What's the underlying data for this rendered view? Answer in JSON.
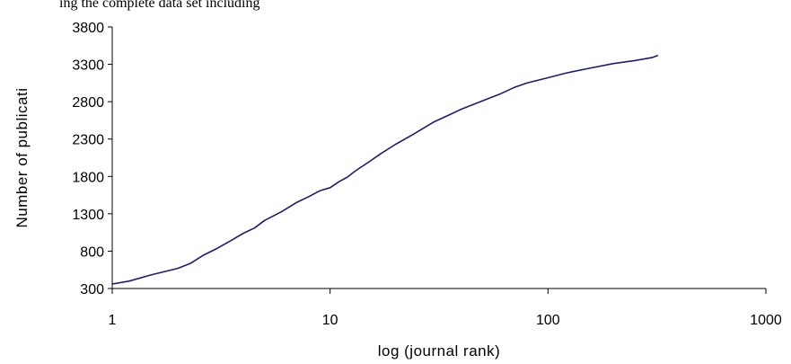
{
  "header_text": "ing the complete data set including",
  "chart_data": {
    "type": "line",
    "xlabel": "log (journal rank)",
    "ylabel": "Number of publicati",
    "x_scale": "log",
    "xlim": [
      1,
      1000
    ],
    "ylim": [
      300,
      3800
    ],
    "x_ticks": [
      1,
      10,
      100,
      1000
    ],
    "x_tick_labels": [
      "1",
      "10",
      "100",
      "1000"
    ],
    "y_ticks": [
      300,
      800,
      1300,
      1800,
      2300,
      2800,
      3300,
      3800
    ],
    "y_tick_labels": [
      "300",
      "800",
      "1300",
      "1800",
      "2300",
      "2800",
      "3300",
      "3800"
    ],
    "grid": false,
    "legend": "none",
    "series": [
      {
        "color": "#1c1c72",
        "x": [
          1,
          1.2,
          1.5,
          2,
          2.3,
          2.6,
          3,
          3.5,
          4,
          4.5,
          5,
          6,
          7,
          8,
          9,
          10,
          11,
          12,
          13,
          15,
          17,
          20,
          24,
          30,
          35,
          40,
          50,
          60,
          70,
          80,
          100,
          120,
          150,
          200,
          250,
          300,
          320
        ],
        "values": [
          360,
          400,
          480,
          570,
          640,
          740,
          830,
          940,
          1040,
          1110,
          1210,
          1330,
          1450,
          1530,
          1610,
          1650,
          1730,
          1790,
          1870,
          1990,
          2100,
          2230,
          2360,
          2530,
          2620,
          2700,
          2810,
          2900,
          2990,
          3050,
          3120,
          3180,
          3240,
          3310,
          3350,
          3390,
          3420
        ]
      }
    ]
  }
}
